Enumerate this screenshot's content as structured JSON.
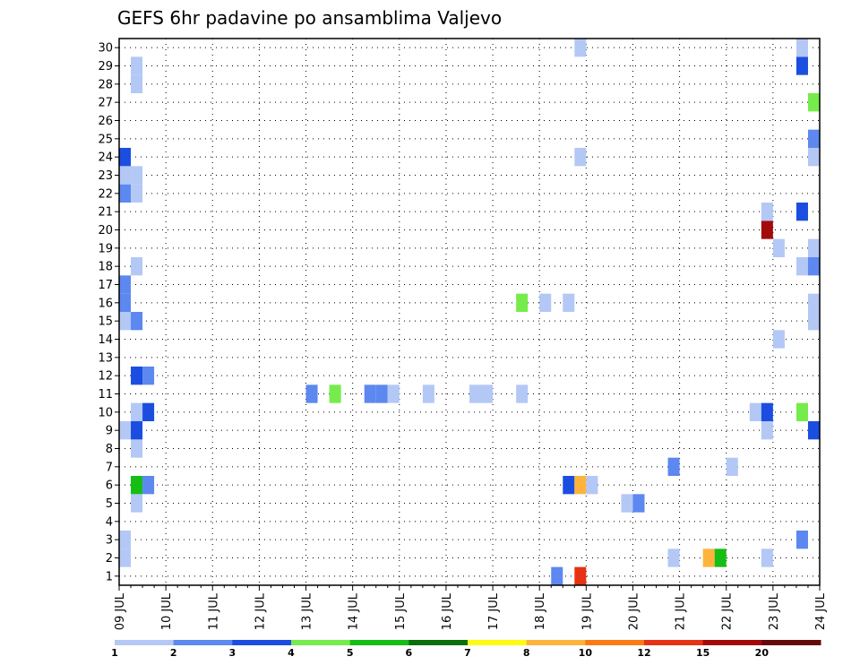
{
  "chart_data": {
    "type": "heatmap",
    "title": "GEFS 6hr padavine po ansamblima Valjevo",
    "xlabel": "",
    "ylabel": "",
    "x_ticks": [
      "09 JUL",
      "10 JUL",
      "11 JUL",
      "12 JUL",
      "13 JUL",
      "14 JUL",
      "15 JUL",
      "16 JUL",
      "17 JUL",
      "18 JUL",
      "19 JUL",
      "20 JUL",
      "21 JUL",
      "22 JUL",
      "23 JUL",
      "24 JUL"
    ],
    "y_ticks": [
      "1",
      "2",
      "3",
      "4",
      "5",
      "6",
      "7",
      "8",
      "9",
      "10",
      "11",
      "12",
      "13",
      "14",
      "15",
      "16",
      "17",
      "18",
      "19",
      "20",
      "21",
      "22",
      "23",
      "24",
      "25",
      "26",
      "27",
      "28",
      "29",
      "30"
    ],
    "xlim_days": [
      0,
      15
    ],
    "ylim": [
      0.5,
      30.5
    ],
    "grid": true,
    "legend_position": "bottom",
    "legend": {
      "colors": [
        "#b4c8f6",
        "#5c88ef",
        "#1b4ee0",
        "#76ec4c",
        "#15bd15",
        "#0a6e0a",
        "#fdfb14",
        "#fdb33c",
        "#fa7b14",
        "#e53313",
        "#a30a0a",
        "#640a0a"
      ],
      "labels": [
        "1",
        "2",
        "3",
        "4",
        "5",
        "6",
        "7",
        "8",
        "10",
        "12",
        "15",
        "20"
      ]
    },
    "cells": [
      {
        "x": 0.125,
        "y": 2,
        "v": 1
      },
      {
        "x": 0.125,
        "y": 3,
        "v": 1
      },
      {
        "x": 0.125,
        "y": 9,
        "v": 1
      },
      {
        "x": 0.125,
        "y": 15,
        "v": 1
      },
      {
        "x": 0.125,
        "y": 16,
        "v": 2
      },
      {
        "x": 0.125,
        "y": 17,
        "v": 2
      },
      {
        "x": 0.125,
        "y": 22,
        "v": 2
      },
      {
        "x": 0.125,
        "y": 23,
        "v": 1
      },
      {
        "x": 0.125,
        "y": 24,
        "v": 3
      },
      {
        "x": 0.375,
        "y": 5,
        "v": 1
      },
      {
        "x": 0.375,
        "y": 6,
        "v": 5
      },
      {
        "x": 0.375,
        "y": 8,
        "v": 1
      },
      {
        "x": 0.375,
        "y": 9,
        "v": 3
      },
      {
        "x": 0.375,
        "y": 10,
        "v": 1
      },
      {
        "x": 0.375,
        "y": 12,
        "v": 3
      },
      {
        "x": 0.375,
        "y": 15,
        "v": 2
      },
      {
        "x": 0.375,
        "y": 18,
        "v": 1
      },
      {
        "x": 0.375,
        "y": 22,
        "v": 1
      },
      {
        "x": 0.375,
        "y": 23,
        "v": 1
      },
      {
        "x": 0.375,
        "y": 28,
        "v": 1
      },
      {
        "x": 0.375,
        "y": 29,
        "v": 1
      },
      {
        "x": 0.625,
        "y": 6,
        "v": 2
      },
      {
        "x": 0.625,
        "y": 10,
        "v": 3
      },
      {
        "x": 0.625,
        "y": 12,
        "v": 2
      },
      {
        "x": 4.125,
        "y": 11,
        "v": 2
      },
      {
        "x": 4.625,
        "y": 11,
        "v": 4
      },
      {
        "x": 5.375,
        "y": 11,
        "v": 2
      },
      {
        "x": 5.625,
        "y": 11,
        "v": 2
      },
      {
        "x": 5.875,
        "y": 11,
        "v": 1
      },
      {
        "x": 6.625,
        "y": 11,
        "v": 1
      },
      {
        "x": 7.625,
        "y": 11,
        "v": 1
      },
      {
        "x": 7.875,
        "y": 11,
        "v": 1
      },
      {
        "x": 8.625,
        "y": 11,
        "v": 1
      },
      {
        "x": 8.625,
        "y": 16,
        "v": 4
      },
      {
        "x": 9.125,
        "y": 16,
        "v": 1
      },
      {
        "x": 9.375,
        "y": 1,
        "v": 2
      },
      {
        "x": 9.625,
        "y": 6,
        "v": 3
      },
      {
        "x": 9.625,
        "y": 16,
        "v": 1
      },
      {
        "x": 9.875,
        "y": 1,
        "v": 12
      },
      {
        "x": 9.875,
        "y": 6,
        "v": 8
      },
      {
        "x": 9.875,
        "y": 24,
        "v": 1
      },
      {
        "x": 9.875,
        "y": 30,
        "v": 1
      },
      {
        "x": 10.125,
        "y": 6,
        "v": 1
      },
      {
        "x": 10.875,
        "y": 5,
        "v": 1
      },
      {
        "x": 11.125,
        "y": 5,
        "v": 2
      },
      {
        "x": 11.875,
        "y": 2,
        "v": 1
      },
      {
        "x": 11.875,
        "y": 7,
        "v": 2
      },
      {
        "x": 12.625,
        "y": 2,
        "v": 8
      },
      {
        "x": 12.875,
        "y": 2,
        "v": 5
      },
      {
        "x": 13.125,
        "y": 7,
        "v": 1
      },
      {
        "x": 13.625,
        "y": 10,
        "v": 1
      },
      {
        "x": 13.875,
        "y": 2,
        "v": 1
      },
      {
        "x": 13.875,
        "y": 9,
        "v": 1
      },
      {
        "x": 13.875,
        "y": 10,
        "v": 3
      },
      {
        "x": 13.875,
        "y": 20,
        "v": 15
      },
      {
        "x": 13.875,
        "y": 21,
        "v": 1
      },
      {
        "x": 14.125,
        "y": 14,
        "v": 1
      },
      {
        "x": 14.125,
        "y": 19,
        "v": 1
      },
      {
        "x": 14.625,
        "y": 3,
        "v": 2
      },
      {
        "x": 14.625,
        "y": 10,
        "v": 4
      },
      {
        "x": 14.625,
        "y": 18,
        "v": 1
      },
      {
        "x": 14.625,
        "y": 21,
        "v": 3
      },
      {
        "x": 14.625,
        "y": 29,
        "v": 3
      },
      {
        "x": 14.625,
        "y": 30,
        "v": 1
      },
      {
        "x": 14.875,
        "y": 9,
        "v": 3
      },
      {
        "x": 14.875,
        "y": 15,
        "v": 1
      },
      {
        "x": 14.875,
        "y": 16,
        "v": 1
      },
      {
        "x": 14.875,
        "y": 18,
        "v": 2
      },
      {
        "x": 14.875,
        "y": 19,
        "v": 1
      },
      {
        "x": 14.875,
        "y": 24,
        "v": 1
      },
      {
        "x": 14.875,
        "y": 25,
        "v": 2
      },
      {
        "x": 14.875,
        "y": 27,
        "v": 4
      }
    ]
  }
}
